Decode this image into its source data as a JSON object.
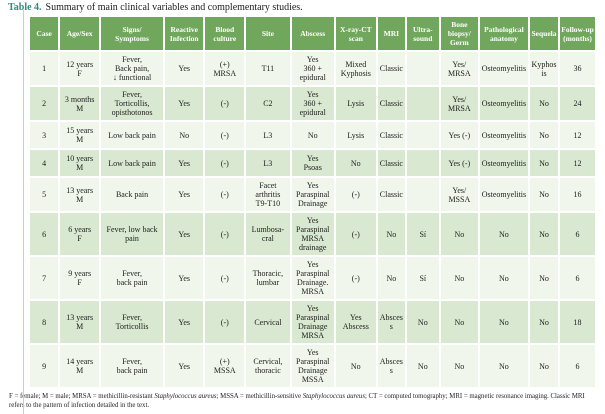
{
  "page": {
    "title_label": "Table 4.",
    "title_text": "Summary of main clinical variables and complementary studies."
  },
  "colors": {
    "header_bg": "#71a75d",
    "row_light": "#f1f6ec",
    "row_dark": "#d9e8d0",
    "title_accent": "#2f8b7b",
    "header_text": "#ffffff"
  },
  "table": {
    "columns": [
      "Case",
      "Age/Sex",
      "Signs/\nSymptoms",
      "Reactive\nInfection",
      "Blood\nculture",
      "Site",
      "Abscess",
      "X-ray-CT\nscan",
      "MRI",
      "Ultra-\nsound",
      "Bone\nbiopsy/\nGerm",
      "Pathological\nanatomy",
      "Sequela",
      "Follow-up\n(months)"
    ],
    "rows": [
      [
        "1",
        "12 years\nF",
        "Fever,\nBack pain,\n↓ functional",
        "Yes",
        "(+)\nMRSA",
        "T11",
        "Yes\n360 +\nepidural",
        "Mixed\nKyphosis",
        "Classic",
        "",
        "Yes/\nMRSA",
        "Osteomyelitis",
        "Kyphosis",
        "36"
      ],
      [
        "2",
        "3 months\nM",
        "Fever,\nTorticollis,\nopisthotonos",
        "Yes",
        "(-)",
        "C2",
        "Yes\n360 +\nepidural",
        "Lysis",
        "Classic",
        "",
        "Yes/\nMRSA",
        "Osteomyelitis",
        "No",
        "24"
      ],
      [
        "3",
        "15 years\nM",
        "Low back pain",
        "No",
        "(-)",
        "L3",
        "No",
        "Lysis",
        "Classic",
        "",
        "Yes (-)",
        "Osteomyelitis",
        "No",
        "12"
      ],
      [
        "4",
        "10 years\nM",
        "Low back pain",
        "Yes",
        "(-)",
        "L3",
        "Yes\nPsoas",
        "No",
        "Classic",
        "",
        "Yes (-)",
        "Osteomyelitis",
        "No",
        "12"
      ],
      [
        "5",
        "13 years\nM",
        "Back pain",
        "Yes",
        "(-)",
        "Facet\narthritis\nT9-T10",
        "Yes\nParaspinal\nDrainage",
        "(-)",
        "Classic",
        "",
        "Yes/\nMSSA",
        "Osteomyelitis",
        "No",
        "16"
      ],
      [
        "6",
        "6 years\nF",
        "Fever, low back\npain",
        "Yes",
        "(-)",
        "Lumbosa-\ncral",
        "Yes\nParaspinal\nMRSA\ndrainage",
        "(-)",
        "No",
        "Sí",
        "No",
        "No",
        "No",
        "6"
      ],
      [
        "7",
        "9 years\nF",
        "Fever,\nback pain",
        "Yes",
        "(-)",
        "Thoracic,\nlumbar",
        "Yes\nParaspinal\nDrainage.\nMRSA",
        "(-)",
        "No",
        "Sí",
        "No",
        "No",
        "No",
        "6"
      ],
      [
        "8",
        "13 years\nM",
        "Fever,\nTorticollis",
        "Yes",
        "(-)",
        "Cervical",
        "Yes\nParaspinal\nDrainage\nMRSA",
        "Yes\nAbscess",
        "Abscess",
        "No",
        "No",
        "No",
        "No",
        "18"
      ],
      [
        "9",
        "14 years\nM",
        "Fever,\nback pain",
        "Yes",
        "(+)\nMSSA",
        "Cervical,\nthoracic",
        "Yes\nParaspinal\nDrainage\nMSSA",
        "No",
        "Abscess",
        "No",
        "No",
        "No",
        "No",
        "6"
      ]
    ]
  },
  "footnote": {
    "segments": [
      {
        "text": "F = female; M = male; MRSA = methicillin-resistant ",
        "italic": false
      },
      {
        "text": "Staphylococcus aureus",
        "italic": true
      },
      {
        "text": "; MSSA = methicillin-sensitive ",
        "italic": false
      },
      {
        "text": "Staphylococcus aureus",
        "italic": true
      },
      {
        "text": "; CT = computed tomography; MRI = magnetic resonance imaging. Classic MRI refers to the pattern of infection detailed in the text.",
        "italic": false
      }
    ]
  }
}
